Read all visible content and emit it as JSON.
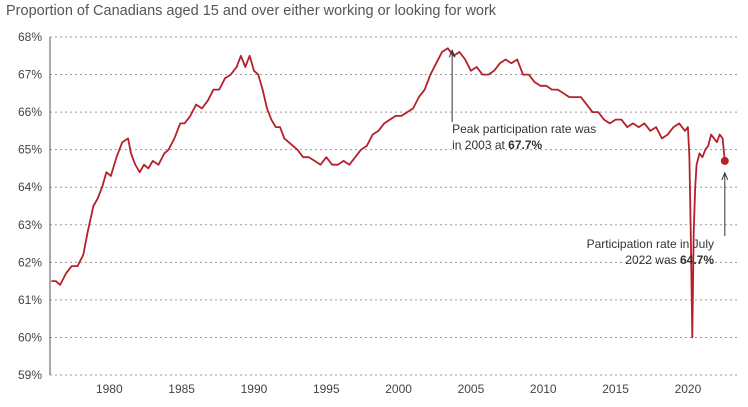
{
  "chart_data": {
    "type": "line",
    "title": "Proportion of Canadians aged 15 and over either working or looking for work",
    "xlabel": "",
    "ylabel": "",
    "xlim": [
      1975.9,
      2023.6
    ],
    "ylim": [
      59,
      68
    ],
    "y_ticks": [
      {
        "value": 68,
        "label": "68%"
      },
      {
        "value": 67,
        "label": "67%"
      },
      {
        "value": 66,
        "label": "66%"
      },
      {
        "value": 65,
        "label": "65%"
      },
      {
        "value": 64,
        "label": "64%"
      },
      {
        "value": 63,
        "label": "63%"
      },
      {
        "value": 62,
        "label": "62%"
      },
      {
        "value": 61,
        "label": "61%"
      },
      {
        "value": 60,
        "label": "60%"
      },
      {
        "value": 59,
        "label": "59%"
      }
    ],
    "x_ticks": [
      {
        "value": 1980,
        "label": "1980"
      },
      {
        "value": 1985,
        "label": "1985"
      },
      {
        "value": 1990,
        "label": "1990"
      },
      {
        "value": 1995,
        "label": "1995"
      },
      {
        "value": 2000,
        "label": "2000"
      },
      {
        "value": 2005,
        "label": "2005"
      },
      {
        "value": 2010,
        "label": "2010"
      },
      {
        "value": 2015,
        "label": "2015"
      },
      {
        "value": 2020,
        "label": "2020"
      }
    ],
    "grid": "horizontal dashed",
    "line_color": "#b5202b",
    "series": [
      {
        "x": [
          1976.0,
          1976.3,
          1976.6,
          1977.0,
          1977.4,
          1977.8,
          1978.2,
          1978.5,
          1978.9,
          1979.2,
          1979.5,
          1979.8,
          1980.1,
          1980.5,
          1980.9,
          1981.3,
          1981.5,
          1981.8,
          1982.1,
          1982.4,
          1982.7,
          1983.0,
          1983.4,
          1983.8,
          1984.1,
          1984.5,
          1984.9,
          1985.2,
          1985.6,
          1986.0,
          1986.4,
          1986.8,
          1987.2,
          1987.6,
          1988.0,
          1988.4,
          1988.8,
          1989.1,
          1989.4,
          1989.7,
          1990.0,
          1990.3,
          1990.6,
          1990.9,
          1991.2,
          1991.5,
          1991.8,
          1992.1,
          1992.4,
          1992.7,
          1993.0,
          1993.4,
          1993.8,
          1994.2,
          1994.6,
          1995.0,
          1995.4,
          1995.8,
          1996.2,
          1996.6,
          1997.0,
          1997.4,
          1997.8,
          1998.2,
          1998.6,
          1999.0,
          1999.4,
          1999.8,
          2000.2,
          2000.6,
          2001.0,
          2001.4,
          2001.8,
          2002.2,
          2002.6,
          2003.0,
          2003.4,
          2003.8,
          2004.2,
          2004.6,
          2005.0,
          2005.4,
          2005.8,
          2006.2,
          2006.6,
          2007.0,
          2007.4,
          2007.8,
          2008.2,
          2008.6,
          2009.0,
          2009.4,
          2009.8,
          2010.2,
          2010.6,
          2011.0,
          2011.4,
          2011.8,
          2012.2,
          2012.6,
          2013.0,
          2013.4,
          2013.8,
          2014.2,
          2014.6,
          2015.0,
          2015.4,
          2015.8,
          2016.2,
          2016.6,
          2017.0,
          2017.4,
          2017.8,
          2018.2,
          2018.6,
          2019.0,
          2019.4,
          2019.8,
          2020.0,
          2020.1,
          2020.2,
          2020.3,
          2020.4,
          2020.5,
          2020.6,
          2020.8,
          2021.0,
          2021.2,
          2021.4,
          2021.6,
          2021.8,
          2022.0,
          2022.2,
          2022.4,
          2022.55
        ],
        "values": [
          61.5,
          61.5,
          61.4,
          61.7,
          61.9,
          61.9,
          62.2,
          62.8,
          63.5,
          63.7,
          64.0,
          64.4,
          64.3,
          64.8,
          65.2,
          65.3,
          64.9,
          64.6,
          64.4,
          64.6,
          64.5,
          64.7,
          64.6,
          64.9,
          65.0,
          65.3,
          65.7,
          65.7,
          65.9,
          66.2,
          66.1,
          66.3,
          66.6,
          66.6,
          66.9,
          67.0,
          67.2,
          67.5,
          67.2,
          67.5,
          67.1,
          67.0,
          66.6,
          66.1,
          65.8,
          65.6,
          65.6,
          65.3,
          65.2,
          65.1,
          65.0,
          64.8,
          64.8,
          64.7,
          64.6,
          64.8,
          64.6,
          64.6,
          64.7,
          64.6,
          64.8,
          65.0,
          65.1,
          65.4,
          65.5,
          65.7,
          65.8,
          65.9,
          65.9,
          66.0,
          66.1,
          66.4,
          66.6,
          67.0,
          67.3,
          67.6,
          67.7,
          67.5,
          67.6,
          67.4,
          67.1,
          67.2,
          67.0,
          67.0,
          67.1,
          67.3,
          67.4,
          67.3,
          67.4,
          67.0,
          67.0,
          66.8,
          66.7,
          66.7,
          66.6,
          66.6,
          66.5,
          66.4,
          66.4,
          66.4,
          66.2,
          66.0,
          66.0,
          65.8,
          65.7,
          65.8,
          65.8,
          65.6,
          65.7,
          65.6,
          65.7,
          65.5,
          65.6,
          65.3,
          65.4,
          65.6,
          65.7,
          65.5,
          65.6,
          64.8,
          62.7,
          60.0,
          62.8,
          64.0,
          64.6,
          64.9,
          64.8,
          65.0,
          65.1,
          65.4,
          65.3,
          65.2,
          65.4,
          65.3,
          64.7
        ]
      }
    ],
    "annotations": [
      {
        "x": 2003.7,
        "y": 67.7,
        "text_before": "Peak participation rate was",
        "text_line2": "in 2003 at ",
        "bold": "67.7%"
      },
      {
        "x": 2022.55,
        "y": 64.7,
        "text_before": "Participation rate in July",
        "text_line2": "2022 was ",
        "bold": "64.7%"
      }
    ]
  }
}
